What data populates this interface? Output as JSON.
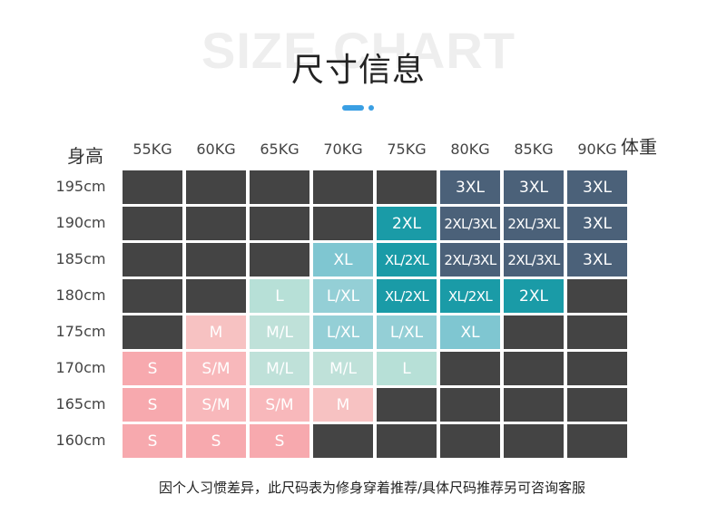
{
  "header": {
    "bg_title": "SIZE CHART",
    "title": "尺寸信息"
  },
  "accent_color": "#3a9fe3",
  "axis": {
    "height_label": "身高",
    "weight_label": "体重"
  },
  "weights": [
    "55KG",
    "60KG",
    "65KG",
    "70KG",
    "75KG",
    "80KG",
    "85KG",
    "90KG"
  ],
  "heights": [
    "195cm",
    "190cm",
    "185cm",
    "180cm",
    "175cm",
    "170cm",
    "165cm",
    "160cm"
  ],
  "size_colors": {
    "none": "#444444",
    "S": "#f7a9ae",
    "S/M": "#f8b8bb",
    "M": "#f7c2c2",
    "M/L": "#bfe1d9",
    "L": "#b7e0d7",
    "L/XL": "#94cfd6",
    "XL": "#7fc6d1",
    "XL/2XL": "#1a9ba7",
    "2XL": "#1a9ba7",
    "2XL/3XL": "#4b6179",
    "3XL": "#4b6179"
  },
  "grid": [
    [
      "",
      "",
      "",
      "",
      "",
      "3XL",
      "3XL",
      "3XL"
    ],
    [
      "",
      "",
      "",
      "",
      "2XL",
      "2XL/3XL",
      "2XL/3XL",
      "3XL"
    ],
    [
      "",
      "",
      "",
      "XL",
      "XL/2XL",
      "2XL/3XL",
      "2XL/3XL",
      "3XL"
    ],
    [
      "",
      "",
      "L",
      "L/XL",
      "XL/2XL",
      "XL/2XL",
      "2XL",
      ""
    ],
    [
      "",
      "M",
      "M/L",
      "L/XL",
      "L/XL",
      "XL",
      "",
      ""
    ],
    [
      "S",
      "S/M",
      "M/L",
      "M/L",
      "L",
      "",
      "",
      ""
    ],
    [
      "S",
      "S/M",
      "S/M",
      "M",
      "",
      "",
      "",
      ""
    ],
    [
      "S",
      "S",
      "S",
      "",
      "",
      "",
      "",
      ""
    ]
  ],
  "footer": {
    "note": "因个人习惯差异，此尺码表为修身穿着推荐/具体尺码推荐另可咨询客服"
  }
}
